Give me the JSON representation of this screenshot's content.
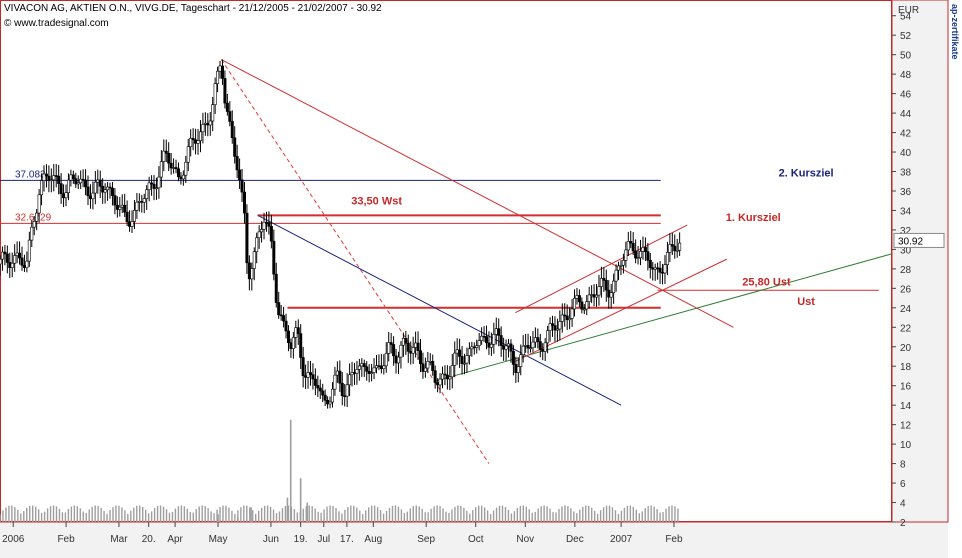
{
  "header": {
    "title": "VIVACON AG, AKTIEN O.N., VIVG.DE, Tageschart - 21/12/2005 - 21/02/2007 - 30.92",
    "source": "© www.tradesignal.com"
  },
  "side_label": "ap-zertifikate",
  "chart_data": {
    "type": "candlestick",
    "currency": "EUR",
    "last_price": "30.92",
    "ylim": [
      2,
      55
    ],
    "y_ticks": [
      "2",
      "4",
      "6",
      "8",
      "10",
      "12",
      "14",
      "16",
      "18",
      "20",
      "22",
      "24",
      "26",
      "28",
      "30",
      "32",
      "34",
      "36",
      "38",
      "40",
      "42",
      "44",
      "46",
      "48",
      "50",
      "52",
      "54"
    ],
    "x_labels": [
      {
        "label": "2006",
        "t": 0.02
      },
      {
        "label": "Feb",
        "t": 0.1
      },
      {
        "label": "Mar",
        "t": 0.18
      },
      {
        "label": "20.",
        "t": 0.225
      },
      {
        "label": "Apr",
        "t": 0.265
      },
      {
        "label": "May",
        "t": 0.33
      },
      {
        "label": "Jun",
        "t": 0.41
      },
      {
        "label": "19.",
        "t": 0.455
      },
      {
        "label": "Jul",
        "t": 0.49
      },
      {
        "label": "17.",
        "t": 0.525
      },
      {
        "label": "Aug",
        "t": 0.565
      },
      {
        "label": "Sep",
        "t": 0.645
      },
      {
        "label": "Oct",
        "t": 0.72
      },
      {
        "label": "Nov",
        "t": 0.795
      },
      {
        "label": "Dec",
        "t": 0.87
      },
      {
        "label": "2007",
        "t": 0.94
      },
      {
        "label": "Feb",
        "t": 1.02
      }
    ],
    "price_path": [
      [
        0.0,
        28.5
      ],
      [
        0.02,
        29.5
      ],
      [
        0.04,
        28.0
      ],
      [
        0.05,
        33.0
      ],
      [
        0.06,
        36.5
      ],
      [
        0.08,
        37.5
      ],
      [
        0.1,
        36.0
      ],
      [
        0.12,
        37.5
      ],
      [
        0.14,
        35.5
      ],
      [
        0.16,
        37.0
      ],
      [
        0.18,
        34.0
      ],
      [
        0.19,
        33.0
      ],
      [
        0.21,
        34.5
      ],
      [
        0.23,
        36.5
      ],
      [
        0.25,
        39.5
      ],
      [
        0.27,
        37.5
      ],
      [
        0.29,
        40.5
      ],
      [
        0.31,
        43.0
      ],
      [
        0.32,
        44.0
      ],
      [
        0.33,
        47.5
      ],
      [
        0.335,
        49.5
      ],
      [
        0.34,
        46.0
      ],
      [
        0.35,
        42.0
      ],
      [
        0.36,
        38.0
      ],
      [
        0.37,
        33.0
      ],
      [
        0.375,
        27.5
      ],
      [
        0.39,
        31.0
      ],
      [
        0.4,
        33.0
      ],
      [
        0.41,
        31.0
      ],
      [
        0.42,
        24.5
      ],
      [
        0.43,
        21.5
      ],
      [
        0.44,
        20.0
      ],
      [
        0.45,
        22.0
      ],
      [
        0.46,
        17.5
      ],
      [
        0.47,
        16.0
      ],
      [
        0.48,
        16.5
      ],
      [
        0.49,
        14.5
      ],
      [
        0.5,
        15.0
      ],
      [
        0.51,
        16.5
      ],
      [
        0.52,
        15.5
      ],
      [
        0.53,
        17.0
      ],
      [
        0.54,
        18.0
      ],
      [
        0.55,
        17.0
      ],
      [
        0.56,
        18.5
      ],
      [
        0.57,
        17.5
      ],
      [
        0.58,
        18.0
      ],
      [
        0.59,
        20.0
      ],
      [
        0.6,
        19.5
      ],
      [
        0.61,
        20.0
      ],
      [
        0.62,
        19.5
      ],
      [
        0.63,
        20.0
      ],
      [
        0.64,
        18.5
      ],
      [
        0.65,
        17.5
      ],
      [
        0.66,
        16.5
      ],
      [
        0.67,
        17.0
      ],
      [
        0.68,
        17.5
      ],
      [
        0.69,
        18.5
      ],
      [
        0.7,
        19.0
      ],
      [
        0.71,
        19.5
      ],
      [
        0.72,
        20.5
      ],
      [
        0.73,
        20.0
      ],
      [
        0.74,
        21.0
      ],
      [
        0.75,
        21.5
      ],
      [
        0.76,
        20.0
      ],
      [
        0.77,
        19.5
      ],
      [
        0.78,
        18.5
      ],
      [
        0.79,
        19.0
      ],
      [
        0.8,
        20.0
      ],
      [
        0.81,
        20.5
      ],
      [
        0.82,
        20.5
      ],
      [
        0.83,
        21.0
      ],
      [
        0.84,
        22.0
      ],
      [
        0.85,
        23.0
      ],
      [
        0.86,
        23.5
      ],
      [
        0.87,
        24.0
      ],
      [
        0.88,
        24.5
      ],
      [
        0.89,
        25.0
      ],
      [
        0.9,
        25.5
      ],
      [
        0.91,
        26.0
      ],
      [
        0.92,
        26.0
      ],
      [
        0.93,
        27.0
      ],
      [
        0.94,
        28.5
      ],
      [
        0.95,
        30.0
      ],
      [
        0.96,
        30.5
      ],
      [
        0.97,
        29.5
      ],
      [
        0.98,
        29.0
      ],
      [
        0.99,
        27.5
      ],
      [
        1.0,
        28.5
      ],
      [
        1.01,
        29.0
      ],
      [
        1.02,
        30.0
      ],
      [
        1.03,
        30.92
      ]
    ],
    "volume_peaks": [
      {
        "t": 0.44,
        "v": 12.5
      },
      {
        "t": 0.435,
        "v": 4.5
      },
      {
        "t": 0.38,
        "v": 3.5
      },
      {
        "t": 0.455,
        "v": 6.5
      },
      {
        "t": 0.465,
        "v": 4.0
      },
      {
        "t": 0.33,
        "v": 2.8
      },
      {
        "t": 0.36,
        "v": 2.5
      }
    ],
    "hlines": [
      {
        "y": 37.083,
        "color": "#1a237e",
        "label": "37.083",
        "x_from": 0.0,
        "x_to": 1.0
      },
      {
        "y": 32.6729,
        "color": "#d32f2f",
        "label": "32.6729",
        "x_from": 0.0,
        "x_to": 1.0
      },
      {
        "y": 33.5,
        "color": "#d32f2f",
        "label": "",
        "x_from": 0.39,
        "x_to": 1.0,
        "width": 2
      },
      {
        "y": 24.0,
        "color": "#d32f2f",
        "label": "",
        "x_from": 0.435,
        "x_to": 1.0,
        "width": 2
      },
      {
        "y": 25.8,
        "color": "#d32f2f",
        "label": "",
        "x_from": 0.995,
        "x_to": 1.33,
        "width": 1
      }
    ],
    "trendlines": [
      {
        "x1": 0.335,
        "y1": 49.5,
        "x2": 1.11,
        "y2": 22.0,
        "color": "#d32f2f",
        "dash": false
      },
      {
        "x1": 0.335,
        "y1": 49.5,
        "x2": 0.74,
        "y2": 8.0,
        "color": "#e53935",
        "dash": true
      },
      {
        "x1": 0.39,
        "y1": 33.5,
        "x2": 0.94,
        "y2": 14.0,
        "color": "#1a237e",
        "dash": false
      },
      {
        "x1": 0.66,
        "y1": 16.5,
        "x2": 1.4,
        "y2": 30.5,
        "color": "#2e7d32",
        "dash": false
      },
      {
        "x1": 0.78,
        "y1": 18.5,
        "x2": 1.1,
        "y2": 29.0,
        "color": "#d32f2f",
        "dash": false
      },
      {
        "x1": 0.78,
        "y1": 23.5,
        "x2": 1.04,
        "y2": 32.5,
        "color": "#d32f2f",
        "dash": false
      }
    ],
    "annotations": [
      {
        "text": "33,50 Wst",
        "t": 0.57,
        "y": 34.6,
        "color": "#c62828"
      },
      {
        "text": "2. Kursziel",
        "t": 1.22,
        "y": 37.5,
        "color": "#1a237e"
      },
      {
        "text": "1. Kursziel",
        "t": 1.14,
        "y": 32.9,
        "color": "#c62828"
      },
      {
        "text": "25,80 Ust",
        "t": 1.16,
        "y": 26.3,
        "color": "#c62828"
      },
      {
        "text": "Ust",
        "t": 1.22,
        "y": 24.3,
        "color": "#c62828"
      }
    ]
  }
}
